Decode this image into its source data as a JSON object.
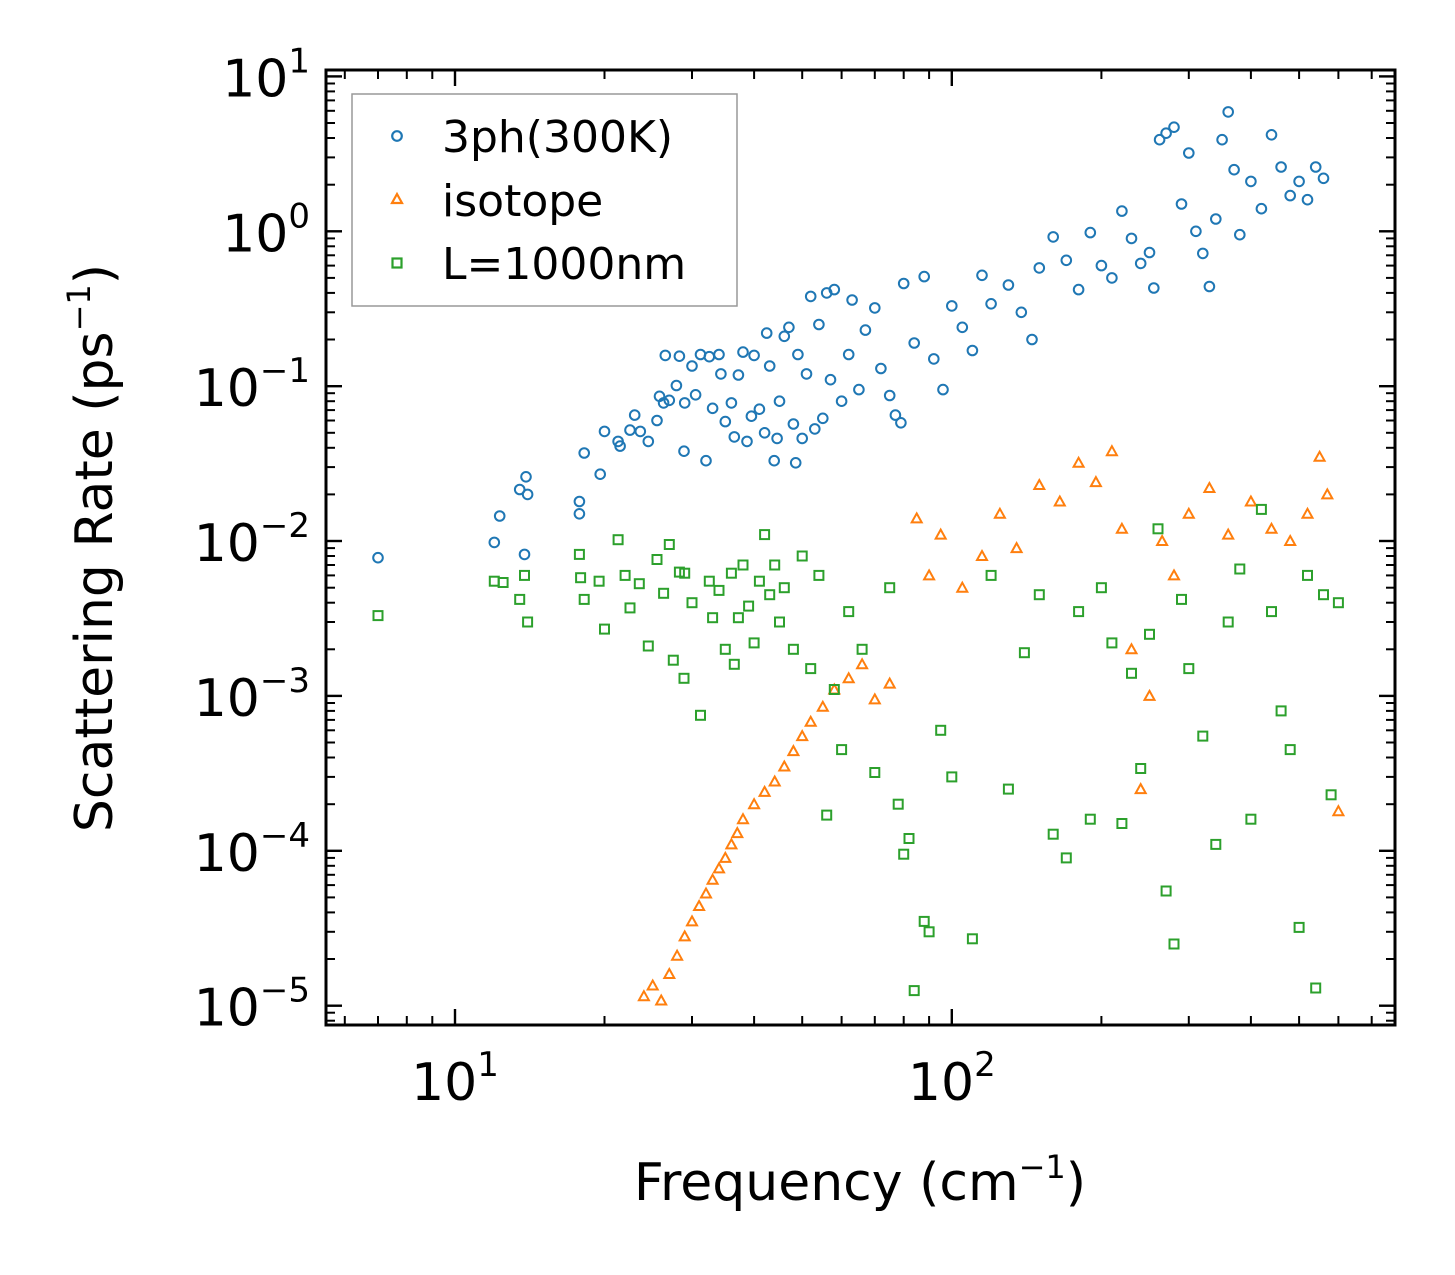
{
  "chart_data": {
    "type": "scatter",
    "title": "",
    "xlabel": "Frequency (cm",
    "xlabel_sup": "−1",
    "xlabel_end": ")",
    "ylabel": "Scattering Rate (ps",
    "ylabel_sup": "−1",
    "ylabel_end": ")",
    "xscale": "log",
    "yscale": "log",
    "xlim": [
      5.5,
      780
    ],
    "ylim": [
      7.5e-06,
      11
    ],
    "grid": false,
    "legend_position": "top-left",
    "x_ticks": [
      {
        "value": 10,
        "base": "10",
        "exp": "1"
      },
      {
        "value": 100,
        "base": "10",
        "exp": "2"
      }
    ],
    "y_ticks": [
      {
        "value": 10,
        "base": "10",
        "exp": "1"
      },
      {
        "value": 1,
        "base": "10",
        "exp": "0"
      },
      {
        "value": 0.1,
        "base": "10",
        "exp": "−1"
      },
      {
        "value": 0.01,
        "base": "10",
        "exp": "−2"
      },
      {
        "value": 0.001,
        "base": "10",
        "exp": "−3"
      },
      {
        "value": 0.0001,
        "base": "10",
        "exp": "−4"
      },
      {
        "value": 1e-05,
        "base": "10",
        "exp": "−5"
      }
    ],
    "series": [
      {
        "name": "3ph(300K)",
        "marker": "circle",
        "color": "#1f77b4",
        "points": [
          [
            7.0,
            0.0078
          ],
          [
            12.0,
            0.0098
          ],
          [
            12.3,
            0.0145
          ],
          [
            13.5,
            0.0215
          ],
          [
            13.9,
            0.026
          ],
          [
            14.0,
            0.02
          ],
          [
            13.8,
            0.0082
          ],
          [
            17.8,
            0.018
          ],
          [
            17.8,
            0.015
          ],
          [
            18.2,
            0.037
          ],
          [
            19.6,
            0.027
          ],
          [
            20.0,
            0.051
          ],
          [
            21.3,
            0.044
          ],
          [
            21.5,
            0.041
          ],
          [
            22.5,
            0.052
          ],
          [
            23.0,
            0.065
          ],
          [
            23.6,
            0.051
          ],
          [
            24.5,
            0.044
          ],
          [
            25.5,
            0.06
          ],
          [
            25.8,
            0.086
          ],
          [
            26.3,
            0.078
          ],
          [
            26.5,
            0.158
          ],
          [
            27.0,
            0.081
          ],
          [
            27.9,
            0.101
          ],
          [
            28.3,
            0.156
          ],
          [
            28.9,
            0.038
          ],
          [
            29.0,
            0.078
          ],
          [
            30.0,
            0.135
          ],
          [
            30.5,
            0.088
          ],
          [
            31.2,
            0.16
          ],
          [
            32.0,
            0.033
          ],
          [
            32.5,
            0.155
          ],
          [
            33.0,
            0.072
          ],
          [
            34.0,
            0.16
          ],
          [
            34.3,
            0.12
          ],
          [
            35.0,
            0.059
          ],
          [
            36.0,
            0.078
          ],
          [
            36.5,
            0.047
          ],
          [
            37.2,
            0.118
          ],
          [
            38.0,
            0.166
          ],
          [
            38.7,
            0.044
          ],
          [
            39.5,
            0.064
          ],
          [
            40.0,
            0.158
          ],
          [
            41.0,
            0.071
          ],
          [
            42.0,
            0.05
          ],
          [
            42.4,
            0.22
          ],
          [
            43.0,
            0.135
          ],
          [
            43.9,
            0.033
          ],
          [
            44.5,
            0.046
          ],
          [
            45.0,
            0.08
          ],
          [
            46.0,
            0.21
          ],
          [
            47.0,
            0.24
          ],
          [
            48.0,
            0.057
          ],
          [
            48.5,
            0.032
          ],
          [
            49.0,
            0.16
          ],
          [
            50.0,
            0.046
          ],
          [
            51.0,
            0.12
          ],
          [
            52.0,
            0.38
          ],
          [
            53.0,
            0.053
          ],
          [
            54.0,
            0.25
          ],
          [
            55.0,
            0.062
          ],
          [
            56.0,
            0.4
          ],
          [
            57.0,
            0.11
          ],
          [
            58.0,
            0.42
          ],
          [
            60.0,
            0.08
          ],
          [
            62.0,
            0.16
          ],
          [
            63.0,
            0.36
          ],
          [
            65.0,
            0.095
          ],
          [
            67.0,
            0.23
          ],
          [
            70.0,
            0.32
          ],
          [
            72.0,
            0.13
          ],
          [
            75.0,
            0.087
          ],
          [
            77.0,
            0.065
          ],
          [
            79.0,
            0.058
          ],
          [
            80.0,
            0.46
          ],
          [
            84.0,
            0.19
          ],
          [
            88.0,
            0.51
          ],
          [
            92.0,
            0.15
          ],
          [
            96.0,
            0.095
          ],
          [
            100.0,
            0.33
          ],
          [
            105.0,
            0.24
          ],
          [
            110.0,
            0.17
          ],
          [
            115.0,
            0.52
          ],
          [
            120.0,
            0.34
          ],
          [
            130.0,
            0.45
          ],
          [
            138.0,
            0.3
          ],
          [
            145.0,
            0.2
          ],
          [
            150.0,
            0.58
          ],
          [
            160.0,
            0.92
          ],
          [
            170.0,
            0.65
          ],
          [
            180.0,
            0.42
          ],
          [
            190.0,
            0.98
          ],
          [
            200.0,
            0.6
          ],
          [
            210.0,
            0.5
          ],
          [
            220.0,
            1.35
          ],
          [
            230.0,
            0.9
          ],
          [
            240.0,
            0.62
          ],
          [
            250.0,
            0.73
          ],
          [
            255.0,
            0.43
          ],
          [
            262.0,
            3.9
          ],
          [
            270.0,
            4.3
          ],
          [
            280.0,
            4.7
          ],
          [
            290.0,
            1.5
          ],
          [
            300.0,
            3.2
          ],
          [
            310.0,
            1.0
          ],
          [
            320.0,
            0.72
          ],
          [
            330.0,
            0.44
          ],
          [
            340.0,
            1.2
          ],
          [
            350.0,
            3.9
          ],
          [
            360.0,
            5.9
          ],
          [
            370.0,
            2.5
          ],
          [
            380.0,
            0.95
          ],
          [
            400.0,
            2.1
          ],
          [
            420.0,
            1.4
          ],
          [
            440.0,
            4.2
          ],
          [
            460.0,
            2.6
          ],
          [
            480.0,
            1.7
          ],
          [
            500.0,
            2.1
          ],
          [
            520.0,
            1.6
          ],
          [
            540.0,
            2.6
          ],
          [
            560.0,
            2.2
          ]
        ]
      },
      {
        "name": "isotope",
        "marker": "triangle",
        "color": "#ff7f0e",
        "points": [
          [
            24.0,
            1.15e-05
          ],
          [
            25.0,
            1.35e-05
          ],
          [
            26.0,
            1.08e-05
          ],
          [
            27.0,
            1.6e-05
          ],
          [
            28.0,
            2.1e-05
          ],
          [
            29.0,
            2.8e-05
          ],
          [
            30.0,
            3.5e-05
          ],
          [
            31.0,
            4.4e-05
          ],
          [
            32.0,
            5.3e-05
          ],
          [
            33.0,
            6.5e-05
          ],
          [
            34.0,
            7.7e-05
          ],
          [
            35.0,
            9e-05
          ],
          [
            36.0,
            0.00011
          ],
          [
            37.0,
            0.00013
          ],
          [
            38.0,
            0.00016
          ],
          [
            40.0,
            0.0002
          ],
          [
            42.0,
            0.00024
          ],
          [
            44.0,
            0.00028
          ],
          [
            46.0,
            0.00035
          ],
          [
            48.0,
            0.00044
          ],
          [
            50.0,
            0.00055
          ],
          [
            52.0,
            0.00068
          ],
          [
            55.0,
            0.00085
          ],
          [
            58.0,
            0.0011
          ],
          [
            62.0,
            0.0013
          ],
          [
            66.0,
            0.0016
          ],
          [
            70.0,
            0.00095
          ],
          [
            75.0,
            0.0012
          ],
          [
            85.0,
            0.014
          ],
          [
            90.0,
            0.006
          ],
          [
            95.0,
            0.011
          ],
          [
            105.0,
            0.005
          ],
          [
            115.0,
            0.008
          ],
          [
            125.0,
            0.015
          ],
          [
            135.0,
            0.009
          ],
          [
            150.0,
            0.023
          ],
          [
            165.0,
            0.018
          ],
          [
            180.0,
            0.032
          ],
          [
            195.0,
            0.024
          ],
          [
            210.0,
            0.038
          ],
          [
            220.0,
            0.012
          ],
          [
            230.0,
            0.002
          ],
          [
            240.0,
            0.00025
          ],
          [
            250.0,
            0.001
          ],
          [
            265.0,
            0.01
          ],
          [
            280.0,
            0.006
          ],
          [
            300.0,
            0.015
          ],
          [
            330.0,
            0.022
          ],
          [
            360.0,
            0.011
          ],
          [
            400.0,
            0.018
          ],
          [
            440.0,
            0.012
          ],
          [
            480.0,
            0.01
          ],
          [
            520.0,
            0.015
          ],
          [
            550.0,
            0.035
          ],
          [
            570.0,
            0.02
          ],
          [
            600.0,
            0.00018
          ]
        ]
      },
      {
        "name": "L=1000nm",
        "marker": "square",
        "color": "#2ca02c",
        "points": [
          [
            7.0,
            0.0033
          ],
          [
            12.0,
            0.0055
          ],
          [
            12.5,
            0.0054
          ],
          [
            13.5,
            0.0042
          ],
          [
            13.8,
            0.006
          ],
          [
            14.0,
            0.003
          ],
          [
            17.8,
            0.0082
          ],
          [
            17.9,
            0.0058
          ],
          [
            18.2,
            0.0042
          ],
          [
            19.5,
            0.0055
          ],
          [
            20.0,
            0.0027
          ],
          [
            21.3,
            0.0102
          ],
          [
            22.0,
            0.006
          ],
          [
            22.5,
            0.0037
          ],
          [
            23.5,
            0.0053
          ],
          [
            24.5,
            0.0021
          ],
          [
            25.5,
            0.0076
          ],
          [
            26.3,
            0.0046
          ],
          [
            27.0,
            0.0095
          ],
          [
            27.5,
            0.0017
          ],
          [
            28.3,
            0.0063
          ],
          [
            28.9,
            0.0013
          ],
          [
            29.0,
            0.0062
          ],
          [
            30.0,
            0.004
          ],
          [
            31.2,
            0.00075
          ],
          [
            32.5,
            0.0055
          ],
          [
            33.0,
            0.0032
          ],
          [
            34.0,
            0.0048
          ],
          [
            35.0,
            0.002
          ],
          [
            36.0,
            0.0062
          ],
          [
            36.5,
            0.0016
          ],
          [
            37.2,
            0.0032
          ],
          [
            38.0,
            0.007
          ],
          [
            39.0,
            0.0038
          ],
          [
            40.0,
            0.0022
          ],
          [
            41.0,
            0.0055
          ],
          [
            42.0,
            0.011
          ],
          [
            43.0,
            0.0045
          ],
          [
            44.0,
            0.007
          ],
          [
            45.0,
            0.003
          ],
          [
            46.0,
            0.005
          ],
          [
            48.0,
            0.002
          ],
          [
            50.0,
            0.008
          ],
          [
            52.0,
            0.0015
          ],
          [
            54.0,
            0.006
          ],
          [
            56.0,
            0.00017
          ],
          [
            58.0,
            0.0011
          ],
          [
            60.0,
            0.00045
          ],
          [
            62.0,
            0.0035
          ],
          [
            66.0,
            0.002
          ],
          [
            70.0,
            0.00032
          ],
          [
            75.0,
            0.005
          ],
          [
            78.0,
            0.0002
          ],
          [
            80.0,
            9.5e-05
          ],
          [
            82.0,
            0.00012
          ],
          [
            84.0,
            1.25e-05
          ],
          [
            88.0,
            3.5e-05
          ],
          [
            90.0,
            3e-05
          ],
          [
            95.0,
            0.0006
          ],
          [
            100.0,
            0.0003
          ],
          [
            110.0,
            2.7e-05
          ],
          [
            120.0,
            0.006
          ],
          [
            130.0,
            0.00025
          ],
          [
            140.0,
            0.0019
          ],
          [
            150.0,
            0.0045
          ],
          [
            160.0,
            0.000128
          ],
          [
            170.0,
            9e-05
          ],
          [
            180.0,
            0.0035
          ],
          [
            190.0,
            0.00016
          ],
          [
            200.0,
            0.005
          ],
          [
            210.0,
            0.0022
          ],
          [
            220.0,
            0.00015
          ],
          [
            230.0,
            0.0014
          ],
          [
            240.0,
            0.00034
          ],
          [
            250.0,
            0.0025
          ],
          [
            260.0,
            0.012
          ],
          [
            270.0,
            5.5e-05
          ],
          [
            280.0,
            2.5e-05
          ],
          [
            290.0,
            0.0042
          ],
          [
            300.0,
            0.0015
          ],
          [
            320.0,
            0.00055
          ],
          [
            340.0,
            0.00011
          ],
          [
            360.0,
            0.003
          ],
          [
            380.0,
            0.0066
          ],
          [
            400.0,
            0.00016
          ],
          [
            420.0,
            0.016
          ],
          [
            440.0,
            0.0035
          ],
          [
            460.0,
            0.0008
          ],
          [
            480.0,
            0.00045
          ],
          [
            500.0,
            3.2e-05
          ],
          [
            520.0,
            0.006
          ],
          [
            540.0,
            1.3e-05
          ],
          [
            560.0,
            0.0045
          ],
          [
            580.0,
            0.00023
          ],
          [
            600.0,
            0.004
          ]
        ]
      }
    ]
  }
}
